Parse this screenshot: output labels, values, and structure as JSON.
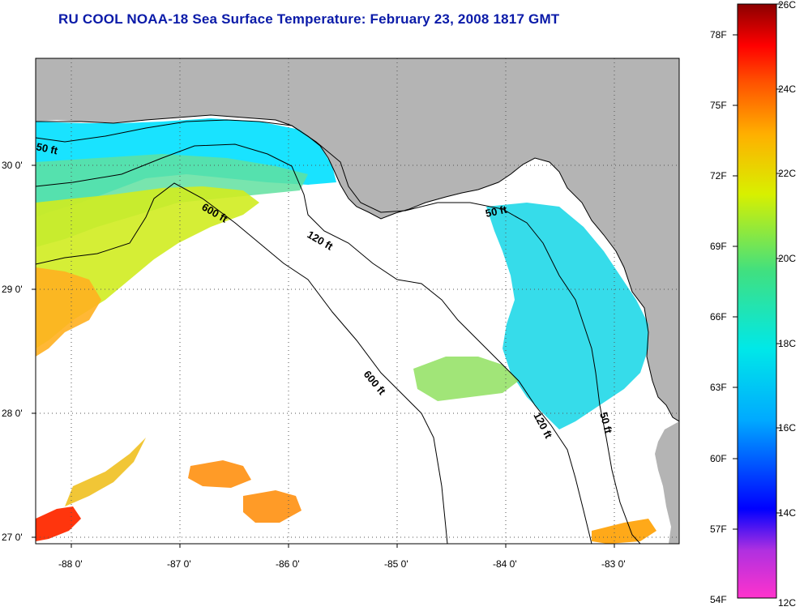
{
  "title": "RU COOL  NOAA-18  Sea Surface Temperature:  February 23, 2008 1817 GMT",
  "map": {
    "lon_ticks": [
      "-88 0'",
      "-87 0'",
      "-86 0'",
      "-85 0'",
      "-84 0'",
      "-83 0'"
    ],
    "lat_ticks": [
      "30 0'",
      "29 0'",
      "28 0'",
      "27 0'"
    ],
    "contours": [
      {
        "label": "50 ft",
        "depth_ft": 50
      },
      {
        "label": "120 ft",
        "depth_ft": 120
      },
      {
        "label": "600 ft",
        "depth_ft": 600
      }
    ],
    "land_color": "#b4b4b4",
    "nodata_color": "#ffffff"
  },
  "colorbar": {
    "fahrenheit_labels": [
      "78F",
      "75F",
      "72F",
      "69F",
      "66F",
      "63F",
      "60F",
      "57F",
      "54F"
    ],
    "celsius_labels": [
      "26C",
      "24C",
      "22C",
      "20C",
      "18C",
      "16C",
      "14C",
      "12C"
    ],
    "range_c": [
      12,
      26
    ],
    "colors": [
      "#ff33cc",
      "#8a2be2",
      "#0000ff",
      "#00aaff",
      "#00e5e5",
      "#40e080",
      "#c8f000",
      "#ffd000",
      "#ff8000",
      "#ff0000",
      "#8b0000"
    ]
  }
}
